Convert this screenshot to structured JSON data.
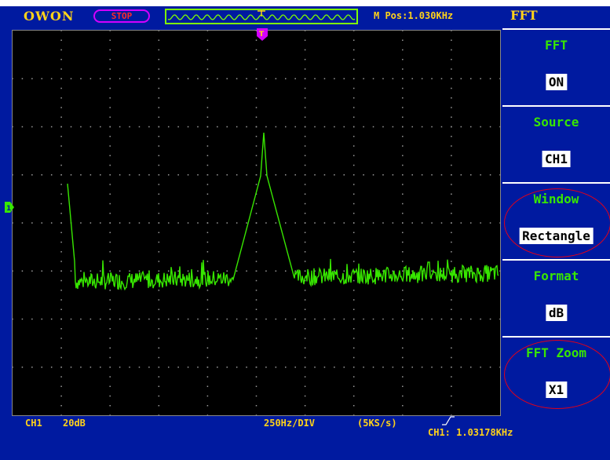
{
  "header": {
    "brand": "OWON",
    "run_state": "STOP",
    "m_pos": "M Pos:1.030KHz"
  },
  "menu": {
    "title": "FFT",
    "items": [
      {
        "label": "FFT",
        "value": "ON"
      },
      {
        "label": "Source",
        "value": "CH1"
      },
      {
        "label": "Window",
        "value": "Rectangle"
      },
      {
        "label": "Format",
        "value": "dB"
      },
      {
        "label": "FFT Zoom",
        "value": "X1"
      }
    ]
  },
  "status": {
    "channel": "CH1",
    "scale": "20dB",
    "horizontal": "250Hz/DIV",
    "sample_rate": "(5KS/s)",
    "frequency": "CH1: 1.03178KHz"
  },
  "colors": {
    "background": "#001aa0",
    "trace": "#37e600",
    "accent": "#ffd21a",
    "stop": "#ff2a2a",
    "marker": "#d400ff"
  }
}
